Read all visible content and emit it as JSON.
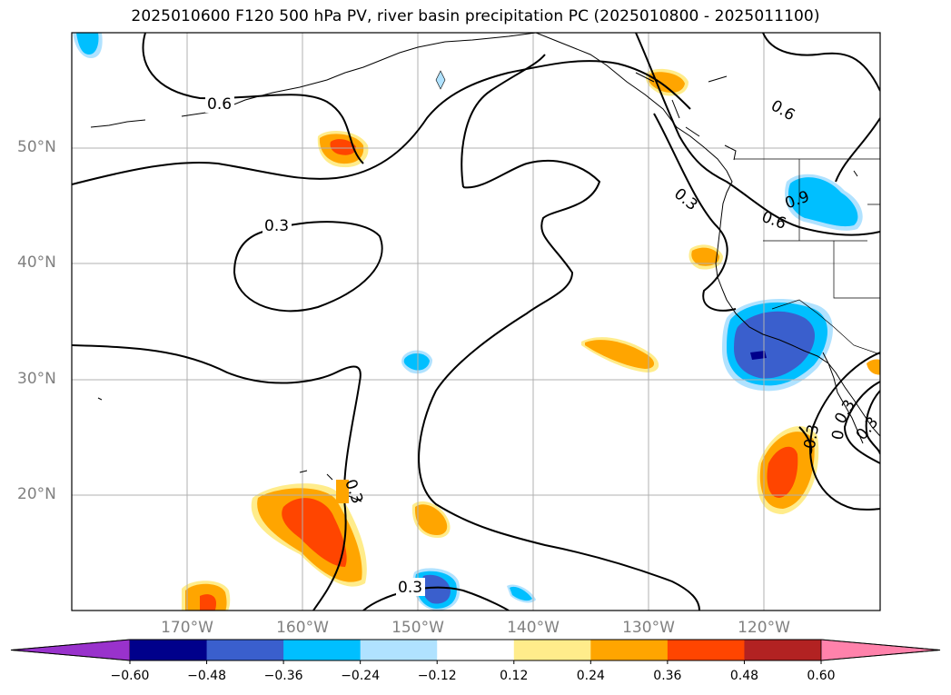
{
  "title": "2025010600 F120 500 hPa PV, river basin precipitation PC (2025010800 - 2025011100)",
  "map": {
    "lat_ticks": [
      "50°N",
      "40°N",
      "30°N",
      "20°N"
    ],
    "lon_ticks": [
      "170°W",
      "160°W",
      "150°W",
      "140°W",
      "130°W",
      "120°W"
    ],
    "extent": {
      "lon_min": -180,
      "lon_max": -110,
      "lat_min": 10,
      "lat_max": 60
    },
    "gridlines": true
  },
  "contour_labels": [
    "0.6",
    "0.3",
    "0.3",
    "0.3",
    "0.3",
    "0.9",
    "0.6",
    "0.6",
    "0.3",
    "0.3",
    "0.3",
    "0"
  ],
  "colorbar": {
    "tick_labels": [
      "−0.60",
      "−0.48",
      "−0.36",
      "−0.24",
      "−0.12",
      "0.12",
      "0.24",
      "0.36",
      "0.48",
      "0.60"
    ],
    "colors": [
      "#9932cc",
      "#00008b",
      "#3a5fcd",
      "#00bfff",
      "#b0e2ff",
      "#ffffff",
      "#ffec8b",
      "#ffa500",
      "#ff4500",
      "#b22222",
      "#ff82ab"
    ],
    "extend": "both"
  }
}
